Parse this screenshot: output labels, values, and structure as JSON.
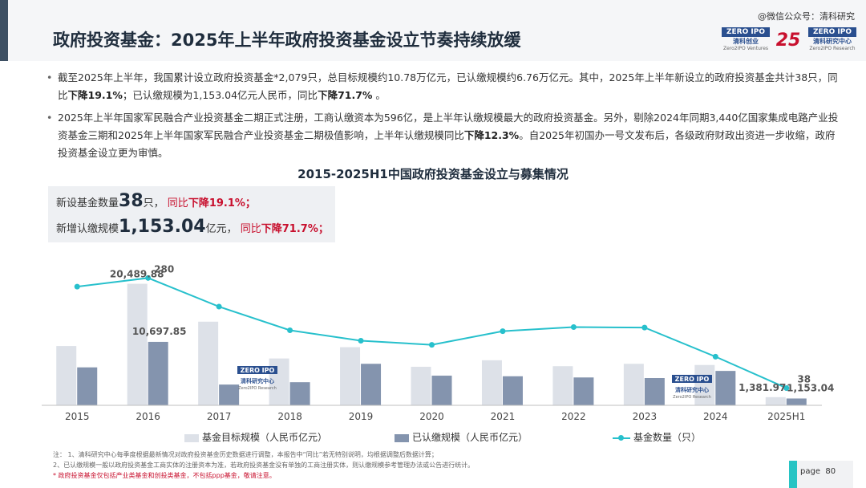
{
  "watermark": "@微信公众号：清科研究",
  "page_title": "政府投资基金：2025年上半年政府投资基金设立节奏持续放缓",
  "logos": {
    "zero2ipo_top": "ZERO IPO",
    "ventures_cn": "清科创业",
    "ventures_en": "Zero2IPO Ventures",
    "anniv": "25",
    "research_cn": "清科研究中心",
    "research_en": "Zero2IPO Research"
  },
  "bullets": [
    {
      "p1": "截至2025年上半年，我国累计设立政府投资基金*2,079只，总目标规模约10.78万亿元，已认缴规模约6.76万亿元。其中，2025年上半年新设立的政府投资基金共计38只，同比",
      "b1": "下降19.1%",
      "p2": "；已认缴规模为1,153.04亿元人民币，同比",
      "b2": "下降71.7%",
      "p3": " 。"
    },
    {
      "p1": "2025年上半年国家军民融合产业投资基金二期正式注册，工商认缴资本为596亿，是上半年认缴规模最大的政府投资基金。另外，剔除2024年同期3,440亿国家集成电路产业投资基金三期和2025年上半年国家军民融合产业投资基金二期极值影响，上半年认缴规模同比",
      "b1": "下降12.3%",
      "p2": "。自2025年初国办一号文发布后，各级政府财政出资进一步收缩，政府投资基金设立更为审慎。"
    }
  ],
  "summary": {
    "l1_prefix": "新设基金数量",
    "l1_value": "38",
    "l1_unit": "只，",
    "l1_change_a": "同比",
    "l1_change_b": "下降19.1%；",
    "l2_prefix": "新增认缴规模",
    "l2_value": "1,153.04",
    "l2_unit": "亿元，",
    "l2_change_a": "同比",
    "l2_change_b": "下降71.7%；"
  },
  "chart_data": {
    "type": "bar",
    "title": "2015-2025H1中国政府投资基金设立与募集情况",
    "categories": [
      "2015",
      "2016",
      "2017",
      "2018",
      "2019",
      "2020",
      "2021",
      "2022",
      "2023",
      "2024",
      "2025H1"
    ],
    "series": [
      {
        "name": "基金目标规模（人民币亿元）",
        "kind": "bar",
        "color": "#dde1e8",
        "values": [
          10000,
          20489.88,
          14100,
          7900,
          9800,
          6500,
          7600,
          6600,
          7000,
          6800,
          1381.97
        ]
      },
      {
        "name": "已认缴规模（人民币亿元）",
        "kind": "bar",
        "color": "#8494ae",
        "values": [
          6400,
          10697.85,
          3500,
          3900,
          7000,
          5000,
          4900,
          4700,
          4600,
          5800,
          1153.04
        ]
      },
      {
        "name": "基金数量（只）",
        "kind": "line",
        "color": "#27c0cc",
        "values": [
          261,
          280,
          217,
          165,
          142,
          133,
          163,
          172,
          171,
          107,
          38
        ]
      }
    ],
    "data_labels": [
      {
        "series": 0,
        "index": 1,
        "text": "20,489.88"
      },
      {
        "series": 1,
        "index": 1,
        "text": "10,697.85"
      },
      {
        "series": 2,
        "index": 1,
        "text": "280"
      },
      {
        "series": 0,
        "index": 10,
        "text": "1,381.97"
      },
      {
        "series": 1,
        "index": 10,
        "text": "1,153.04"
      },
      {
        "series": 2,
        "index": 10,
        "text": "38"
      }
    ],
    "bar_axis_max": 23000,
    "line_axis_max": 300,
    "grid": false,
    "legend_position": "bottom"
  },
  "watermark_badges": [
    {
      "top": "ZERO IPO",
      "cn": "清科研究中心",
      "en": "Zero2IPO Research"
    },
    {
      "top": "ZERO IPO",
      "cn": "清科研究中心",
      "en": "Zero2IPO Research"
    }
  ],
  "notes": {
    "n1": "注：  1、清科研究中心每季度根据最新情况对政府投资基金历史数据进行调整，本报告中“同比”若无特别说明，均根据调整后数据计算；",
    "n2": "        2、已认缴规模一般以政府投资基金工商实体的注册资本为准，若政府投资基金没有单独的工商注册实体，则认缴规模参考管理办法或公告进行统计。",
    "n3": "        * 政府投资基金仅包括产业类基金和创投类基金，不包括ppp基金，敬请注意。"
  },
  "page": {
    "label": "page",
    "number": "80"
  },
  "colors": {
    "accent": "#27c4c4",
    "red": "#c8102e",
    "navy": "#1f2d3d"
  }
}
